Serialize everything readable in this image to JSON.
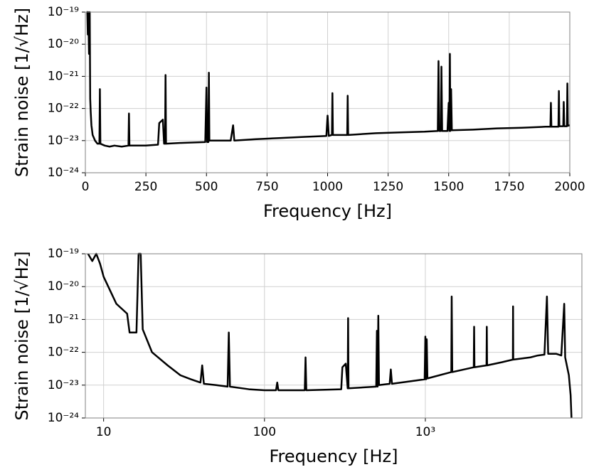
{
  "chart_data": [
    {
      "type": "line",
      "xlabel": "Frequency [Hz]",
      "ylabel": "Strain noise [1/√Hz]",
      "xscale": "linear",
      "yscale": "log",
      "grid": true,
      "xlim": [
        0,
        2000
      ],
      "xticks": [
        0,
        250,
        500,
        750,
        1000,
        1250,
        1500,
        1750,
        2000
      ],
      "ylim": [
        1e-24,
        1e-19
      ],
      "yticks": [
        {
          "value": 1e-24,
          "label": "10⁻²⁴"
        },
        {
          "value": 1e-23,
          "label": "10⁻²³"
        },
        {
          "value": 1e-22,
          "label": "10⁻²²"
        },
        {
          "value": 1e-21,
          "label": "10⁻²¹"
        },
        {
          "value": 1e-20,
          "label": "10⁻²⁰"
        },
        {
          "value": 1e-19,
          "label": "10⁻¹⁹"
        }
      ],
      "x": [
        5,
        8,
        10,
        12,
        15,
        18,
        20,
        22,
        25,
        30,
        40,
        50,
        58,
        60,
        62,
        80,
        100,
        120,
        150,
        178,
        180,
        182,
        250,
        300,
        305,
        320,
        325,
        329,
        331,
        333,
        400,
        495,
        500,
        503,
        508,
        510,
        512,
        600,
        610,
        615,
        700,
        800,
        900,
        995,
        1000,
        1005,
        1018,
        1020,
        1022,
        1081,
        1083,
        1085,
        1200,
        1300,
        1400,
        1455,
        1458,
        1461,
        1468,
        1470,
        1473,
        1495,
        1500,
        1503,
        1505,
        1507,
        1510,
        1513,
        1600,
        1700,
        1800,
        1900,
        1920,
        1922,
        1924,
        1953,
        1955,
        1957,
        1973,
        1975,
        1977,
        1988,
        1990,
        1992,
        2000
      ],
      "series": [
        {
          "name": "strain",
          "color": "#000000",
          "values": [
            1e-19,
            1e-19,
            2e-20,
            1e-19,
            5e-21,
            1e-19,
            2e-22,
            8e-23,
            3e-23,
            1.5e-23,
            1e-23,
            8e-24,
            8e-24,
            4e-22,
            8e-24,
            7e-24,
            6.5e-24,
            7e-24,
            6.5e-24,
            7e-24,
            7e-23,
            7e-24,
            7e-24,
            7.5e-24,
            3.5e-23,
            4.5e-23,
            8e-24,
            8e-24,
            1.1e-21,
            8e-24,
            8.5e-24,
            9e-24,
            4.5e-22,
            9e-24,
            9e-24,
            1.3e-21,
            1e-23,
            1e-23,
            3e-23,
            1e-23,
            1.1e-23,
            1.2e-23,
            1.3e-23,
            1.4e-23,
            6e-23,
            1.4e-23,
            1.5e-23,
            3e-22,
            1.5e-23,
            1.5e-23,
            2.5e-22,
            1.5e-23,
            1.7e-23,
            1.8e-23,
            1.9e-23,
            2e-23,
            3e-21,
            2e-23,
            2e-23,
            2e-21,
            2e-23,
            2e-23,
            1.5e-22,
            2e-23,
            5e-21,
            2e-23,
            4e-22,
            2.1e-23,
            2.2e-23,
            2.4e-23,
            2.5e-23,
            2.7e-23,
            2.7e-23,
            1.5e-22,
            2.7e-23,
            2.7e-23,
            3.5e-22,
            2.8e-23,
            2.8e-23,
            1.6e-22,
            2.8e-23,
            2.8e-23,
            6e-22,
            2.9e-23,
            3e-23
          ]
        }
      ]
    },
    {
      "type": "line",
      "xlabel": "Frequency [Hz]",
      "ylabel": "Strain noise [1/√Hz]",
      "xscale": "log",
      "yscale": "log",
      "grid": true,
      "xlim": [
        7.7,
        9400
      ],
      "xticks": [
        10,
        100,
        {
          "value": 1000,
          "label": "10³"
        }
      ],
      "ylim": [
        1e-24,
        1e-19
      ],
      "yticks": [
        {
          "value": 1e-24,
          "label": "10⁻²⁴"
        },
        {
          "value": 1e-23,
          "label": "10⁻²³"
        },
        {
          "value": 1e-22,
          "label": "10⁻²²"
        },
        {
          "value": 1e-21,
          "label": "10⁻²¹"
        },
        {
          "value": 1e-20,
          "label": "10⁻²⁰"
        },
        {
          "value": 1e-19,
          "label": "10⁻¹⁹"
        }
      ],
      "x": [
        8,
        8.5,
        9,
        9.5,
        10,
        12,
        14,
        14.5,
        16,
        16.5,
        17,
        17.5,
        20,
        25,
        30,
        35,
        40,
        41,
        42,
        50,
        59,
        60,
        61,
        80,
        100,
        118,
        120,
        122,
        178,
        180,
        182,
        300,
        305,
        320,
        329,
        331,
        333,
        495,
        500,
        505,
        510,
        515,
        600,
        610,
        620,
        800,
        990,
        1000,
        1010,
        1020,
        1030,
        1450,
        1458,
        1470,
        2000,
        2010,
        2020,
        2400,
        2410,
        2420,
        3000,
        3500,
        3510,
        3520,
        4500,
        5000,
        5500,
        5700,
        5800,
        6500,
        7000,
        7300,
        7400,
        7800,
        8000,
        8100
      ],
      "series": [
        {
          "name": "strain",
          "color": "#000000",
          "values": [
            1e-19,
            6e-20,
            1e-19,
            5e-20,
            2e-20,
            3e-21,
            1.5e-21,
            4e-22,
            4e-22,
            1e-19,
            1e-19,
            5e-22,
            1e-22,
            4e-23,
            2e-23,
            1.5e-23,
            1.2e-23,
            4e-23,
            1.1e-23,
            1e-23,
            9e-24,
            4e-22,
            9e-24,
            7.5e-24,
            7e-24,
            7e-24,
            1.2e-23,
            7e-24,
            7e-24,
            7e-23,
            7e-24,
            7.5e-24,
            3.5e-23,
            4.5e-23,
            8e-24,
            1.1e-21,
            8e-24,
            9e-24,
            4.5e-22,
            9e-24,
            1.3e-21,
            1e-23,
            1.1e-23,
            3e-23,
            1.1e-23,
            1.3e-23,
            1.5e-23,
            3e-22,
            1.5e-23,
            2.5e-22,
            1.6e-23,
            2.5e-23,
            5e-21,
            2.5e-23,
            3.5e-23,
            6e-22,
            3.5e-23,
            4e-23,
            6e-22,
            4e-23,
            5e-23,
            6e-23,
            2.5e-21,
            6e-23,
            7e-23,
            8e-23,
            8.5e-23,
            5e-21,
            9e-23,
            9e-23,
            8e-23,
            3e-21,
            7e-23,
            2e-23,
            5e-24,
            1e-24
          ]
        }
      ]
    }
  ]
}
